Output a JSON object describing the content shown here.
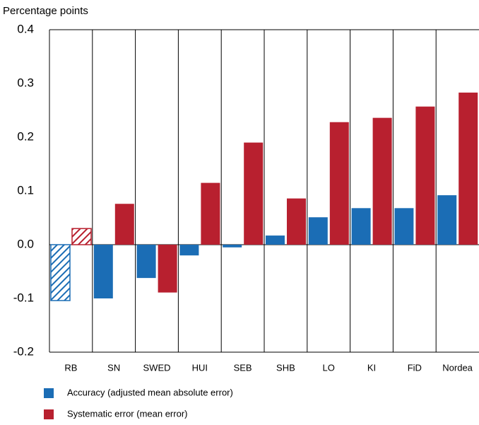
{
  "chart_data": {
    "type": "bar",
    "y_label": "Percentage points",
    "categories": [
      "RB",
      "SN",
      "SWED",
      "HUI",
      "SEB",
      "SHB",
      "LO",
      "KI",
      "FiD",
      "Nordea"
    ],
    "series": [
      {
        "name": "Accuracy (adjusted mean absolute error)",
        "color": "#1b6db5",
        "values": [
          -0.104,
          -0.1,
          -0.062,
          -0.02,
          -0.005,
          0.017,
          0.051,
          0.068,
          0.068,
          0.092
        ]
      },
      {
        "name": "Systematic error (mean error)",
        "color": "#b8202f",
        "values": [
          0.03,
          0.076,
          -0.089,
          0.115,
          0.19,
          0.086,
          0.228,
          0.236,
          0.257,
          0.283
        ]
      }
    ],
    "hatched": [
      0
    ],
    "ylim": [
      -0.2,
      0.4
    ],
    "yticks": [
      -0.2,
      -0.1,
      {
        "value": 0,
        "label": "0.0"
      },
      0.1,
      0.2,
      0.3,
      0.4
    ]
  }
}
